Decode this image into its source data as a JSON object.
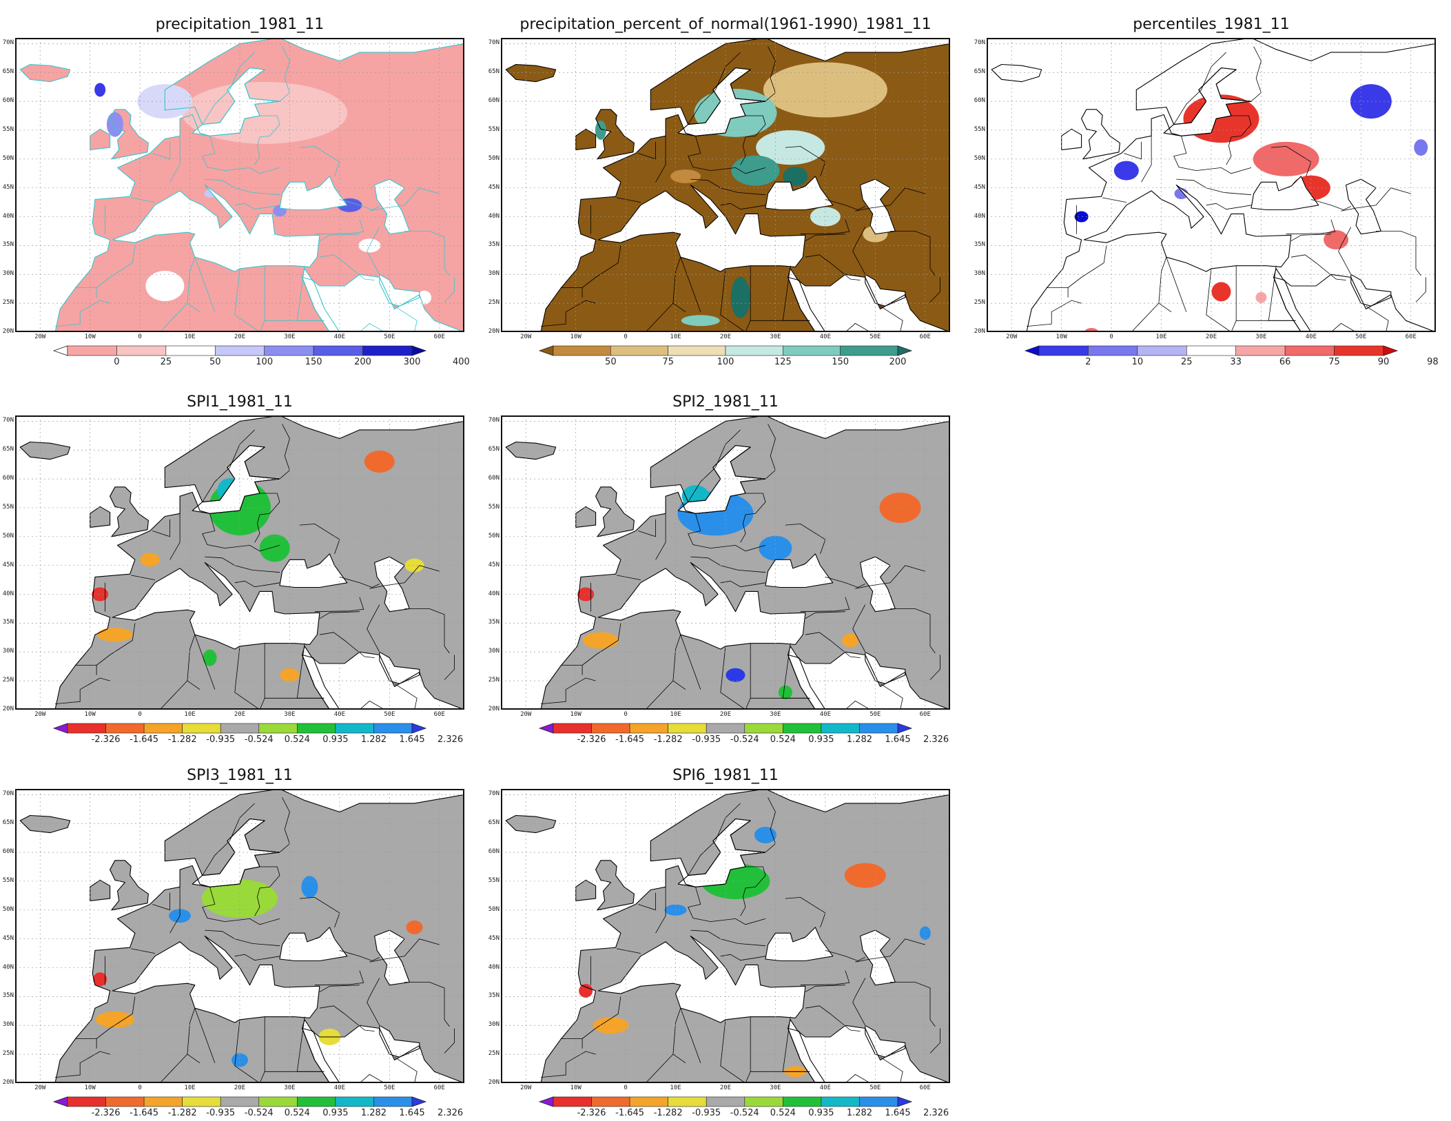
{
  "lat_labels": [
    "70N",
    "65N",
    "60N",
    "55N",
    "50N",
    "45N",
    "40N",
    "35N",
    "30N",
    "25N",
    "20N"
  ],
  "lon_labels": [
    "20W",
    "10W",
    "0",
    "10E",
    "20E",
    "30E",
    "40E",
    "50E",
    "60E"
  ],
  "colors": {
    "coast_precip": "#33c6cc",
    "coast_other": "#000000",
    "land_gray": "#a9a9a9",
    "pink": "#f6a3a3",
    "brown": "#8b5a14",
    "tan": "#dcbf7e",
    "teal": "#217a6e",
    "red": "#e8352c",
    "blue": "#2f2fe0",
    "green": "#22c03a",
    "yellow": "#e6dc3a",
    "orange": "#f59a2a"
  },
  "scales": {
    "precip": {
      "labels": [
        "0",
        "25",
        "50",
        "100",
        "150",
        "200",
        "300",
        "400"
      ],
      "colors": [
        "#ffffff",
        "#f7a6a6",
        "#f8c4c4",
        "#ffffff",
        "#c6c8f8",
        "#8c8ff0",
        "#5a5ee6",
        "#2020c8",
        "#0a0aa8"
      ]
    },
    "pct": {
      "labels": [
        "50",
        "75",
        "100",
        "125",
        "150",
        "200"
      ],
      "colors": [
        "#8b5a14",
        "#c28a3e",
        "#dcbf7e",
        "#ecdfb6",
        "#c6e8e2",
        "#7fcbbd",
        "#3e9c8c",
        "#1c6f63"
      ]
    },
    "perc": {
      "labels": [
        "2",
        "10",
        "25",
        "33",
        "66",
        "75",
        "90",
        "98"
      ],
      "colors": [
        "#0a0ad8",
        "#3a3ae8",
        "#7878ee",
        "#b4b4f4",
        "#ffffff",
        "#f6a6a6",
        "#f06a6a",
        "#e8352c",
        "#d40a0a"
      ]
    },
    "spi": {
      "labels": [
        "-2.326",
        "-1.645",
        "-1.282",
        "-0.935",
        "-0.524",
        "0.524",
        "0.935",
        "1.282",
        "1.645",
        "2.326"
      ],
      "colors": [
        "#8a1ad6",
        "#e8302c",
        "#f06a2e",
        "#f5a42a",
        "#e6dc3a",
        "#a9a9a9",
        "#9ad93a",
        "#22c03a",
        "#12b8c8",
        "#2a8fe8",
        "#2a3ae6"
      ]
    }
  },
  "panels": [
    {
      "id": "precip",
      "title": "precipitation_1981_11",
      "scale": "precip",
      "theme": "precip"
    },
    {
      "id": "pct",
      "title": "precipitation_percent_of_normal(1961-1990)_1981_11",
      "scale": "pct",
      "theme": "pct"
    },
    {
      "id": "perc",
      "title": "percentiles_1981_11",
      "scale": "perc",
      "theme": "perc"
    },
    {
      "id": "spi1",
      "title": "SPI1_1981_11",
      "scale": "spi",
      "theme": "spi1"
    },
    {
      "id": "spi2",
      "title": "SPI2_1981_11",
      "scale": "spi",
      "theme": "spi2"
    },
    {
      "id": "spi3",
      "title": "SPI3_1981_11",
      "scale": "spi",
      "theme": "spi3"
    },
    {
      "id": "spi6",
      "title": "SPI6_1981_11",
      "scale": "spi",
      "theme": "spi6"
    }
  ]
}
